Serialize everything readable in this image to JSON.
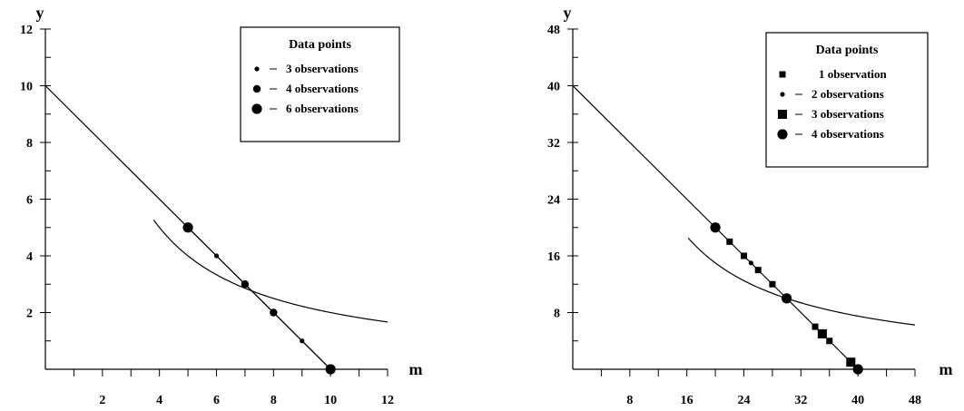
{
  "chart_data": [
    {
      "type": "line",
      "xlabel": "m",
      "ylabel": "y",
      "xlim": [
        0,
        12
      ],
      "ylim": [
        0,
        12
      ],
      "x_ticks": [
        2,
        4,
        6,
        8,
        10,
        12
      ],
      "y_ticks": [
        2,
        4,
        6,
        8,
        10,
        12
      ],
      "x_minor": [
        1,
        3,
        5,
        7,
        9,
        11
      ],
      "y_minor": [
        1,
        3,
        5,
        7,
        9,
        11
      ],
      "line": {
        "from": [
          0,
          10
        ],
        "to": [
          10,
          0
        ]
      },
      "curve": {
        "k": 20,
        "x_from": 3.8,
        "x_to": 12
      },
      "polyline": [
        [
          5,
          5
        ],
        [
          6,
          4
        ],
        [
          7,
          3
        ],
        [
          8,
          2
        ],
        [
          9,
          1
        ],
        [
          10,
          0
        ]
      ],
      "legend": {
        "title": "Data  points",
        "position": "top-right",
        "entries": [
          {
            "marker": "circle-small",
            "label": "3 observations"
          },
          {
            "marker": "circle-medium",
            "label": "4 observations"
          },
          {
            "marker": "circle-large",
            "label": "6 observations"
          }
        ]
      },
      "points": [
        {
          "x": 5,
          "y": 5,
          "marker": "circle-large"
        },
        {
          "x": 6,
          "y": 4,
          "marker": "circle-small"
        },
        {
          "x": 7,
          "y": 3,
          "marker": "circle-medium"
        },
        {
          "x": 8,
          "y": 2,
          "marker": "circle-medium"
        },
        {
          "x": 9,
          "y": 1,
          "marker": "circle-small"
        },
        {
          "x": 10,
          "y": 0,
          "marker": "circle-large"
        }
      ]
    },
    {
      "type": "line",
      "xlabel": "m",
      "ylabel": "y",
      "xlim": [
        0,
        48
      ],
      "ylim": [
        0,
        48
      ],
      "x_ticks": [
        8,
        16,
        24,
        32,
        40,
        48
      ],
      "y_ticks": [
        8,
        16,
        24,
        32,
        40,
        48
      ],
      "x_minor": [
        4,
        12,
        20,
        28,
        36,
        44
      ],
      "y_minor": [
        4,
        12,
        20,
        28,
        36,
        44
      ],
      "line": {
        "from": [
          0,
          40
        ],
        "to": [
          20,
          20
        ]
      },
      "curve": {
        "k": 300,
        "x_from": 16.2,
        "x_to": 48
      },
      "polyline": [
        [
          20,
          20
        ],
        [
          22,
          18
        ],
        [
          24,
          16
        ],
        [
          25,
          15
        ],
        [
          26,
          14
        ],
        [
          28,
          12
        ],
        [
          30,
          10
        ],
        [
          34,
          6
        ],
        [
          35,
          5
        ],
        [
          36,
          4
        ],
        [
          39,
          1
        ],
        [
          40,
          0
        ]
      ],
      "legend": {
        "title": "Data  points",
        "position": "top-right",
        "entries": [
          {
            "marker": "square-small",
            "label": "1 observation"
          },
          {
            "marker": "circle-small",
            "label": "2 observations"
          },
          {
            "marker": "square-large",
            "label": "3 observations"
          },
          {
            "marker": "circle-large",
            "label": "4 observations"
          }
        ]
      },
      "points": [
        {
          "x": 20,
          "y": 20,
          "marker": "circle-large"
        },
        {
          "x": 22,
          "y": 18,
          "marker": "square-small"
        },
        {
          "x": 24,
          "y": 16,
          "marker": "square-small"
        },
        {
          "x": 25,
          "y": 15,
          "marker": "circle-small"
        },
        {
          "x": 26,
          "y": 14,
          "marker": "square-small"
        },
        {
          "x": 28,
          "y": 12,
          "marker": "square-small"
        },
        {
          "x": 30,
          "y": 10,
          "marker": "circle-large"
        },
        {
          "x": 34,
          "y": 6,
          "marker": "square-small"
        },
        {
          "x": 35,
          "y": 5,
          "marker": "square-large"
        },
        {
          "x": 36,
          "y": 4,
          "marker": "square-small"
        },
        {
          "x": 39,
          "y": 1,
          "marker": "square-large"
        },
        {
          "x": 40,
          "y": 0,
          "marker": "circle-large"
        }
      ]
    }
  ]
}
